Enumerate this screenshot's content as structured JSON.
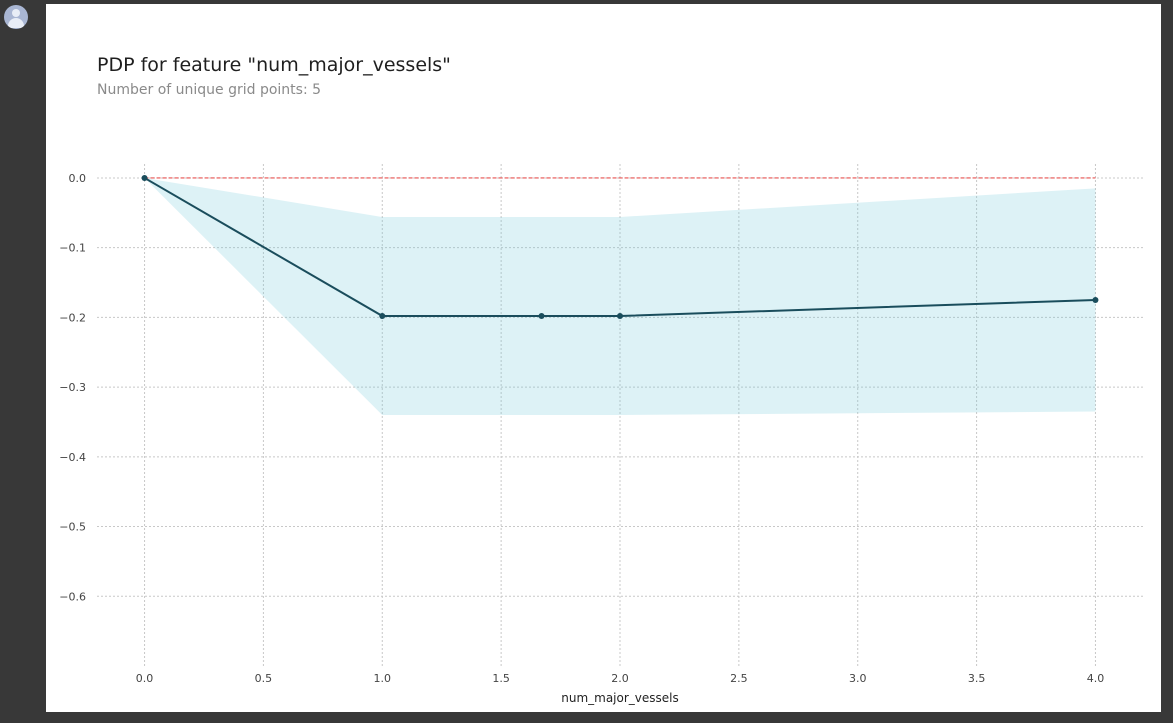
{
  "chart_data": {
    "type": "line",
    "title": "PDP for feature \"num_major_vessels\"",
    "subtitle": "Number of unique grid points: 5",
    "xlabel": "num_major_vessels",
    "ylabel": "",
    "xlim": [
      -0.2,
      4.2
    ],
    "ylim": [
      -0.7,
      0.02
    ],
    "xticks": [
      0.0,
      0.5,
      1.0,
      1.5,
      2.0,
      2.5,
      3.0,
      3.5,
      4.0
    ],
    "xtick_labels": [
      "0.0",
      "0.5",
      "1.0",
      "1.5",
      "2.0",
      "2.5",
      "3.0",
      "3.5",
      "4.0"
    ],
    "yticks": [
      0.0,
      -0.1,
      -0.2,
      -0.3,
      -0.4,
      -0.5,
      -0.6
    ],
    "ytick_labels": [
      "0.0",
      "−0.1",
      "−0.2",
      "−0.3",
      "−0.4",
      "−0.5",
      "−0.6"
    ],
    "grid": true,
    "series": [
      {
        "x": [
          0.0,
          1.0,
          1.67,
          2.0,
          4.0
        ],
        "y": [
          0.0,
          -0.198,
          -0.198,
          -0.198,
          -0.175
        ],
        "color": "#1a4d5c"
      }
    ],
    "confidence_band": {
      "x": [
        0.0,
        1.0,
        2.0,
        4.0
      ],
      "upper": [
        0.0,
        -0.056,
        -0.056,
        -0.015
      ],
      "lower": [
        0.0,
        -0.34,
        -0.34,
        -0.335
      ],
      "color": "#66c2d7"
    },
    "reference_line": {
      "y": 0.0,
      "color": "#e8514f"
    }
  }
}
